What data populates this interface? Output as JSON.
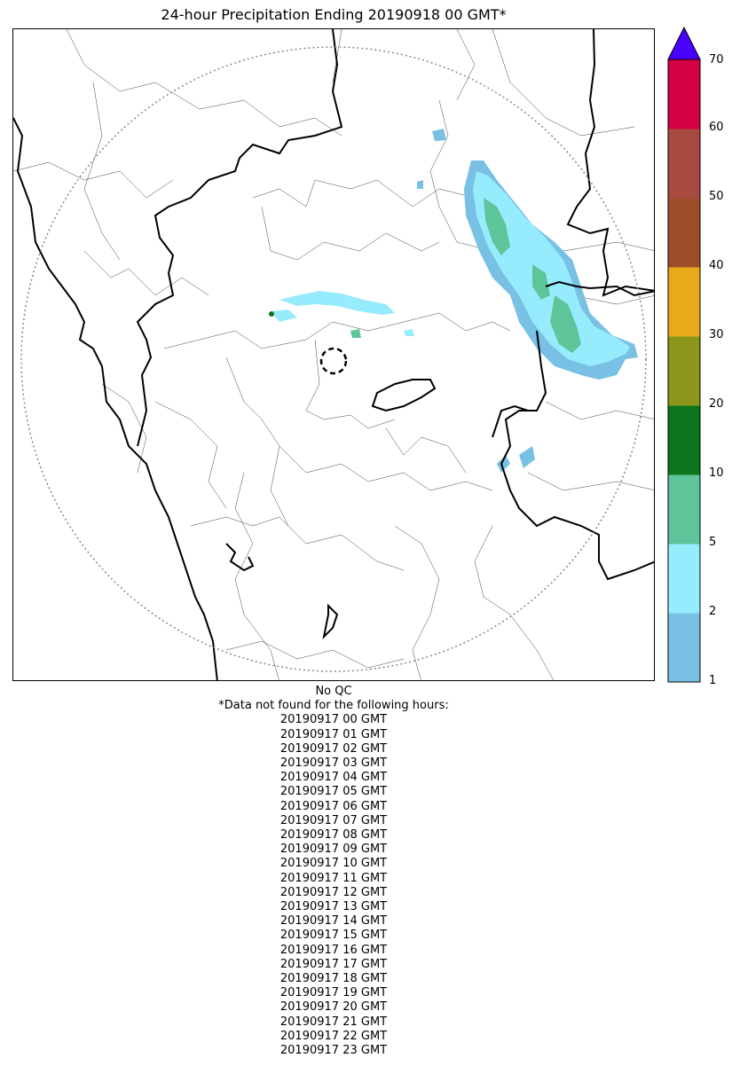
{
  "title": "24-hour Precipitation Ending 20190918 00 GMT*",
  "colorbar": {
    "ticks": [
      "1",
      "2",
      "5",
      "10",
      "20",
      "30",
      "40",
      "50",
      "60",
      "70"
    ],
    "colors": [
      "#78c0e4",
      "#96ecfc",
      "#5ec49a",
      "#0e741e",
      "#8c961a",
      "#e6aa1a",
      "#9c4e2a",
      "#a84a40",
      "#d40044"
    ],
    "extend_color": "#4a00ff"
  },
  "footer": {
    "qc": "No QC",
    "missing_heading": "*Data not found for the following hours:",
    "missing_hours": [
      "20190917 00 GMT",
      "20190917 01 GMT",
      "20190917 02 GMT",
      "20190917 03 GMT",
      "20190917 04 GMT",
      "20190917 05 GMT",
      "20190917 06 GMT",
      "20190917 07 GMT",
      "20190917 08 GMT",
      "20190917 09 GMT",
      "20190917 10 GMT",
      "20190917 11 GMT",
      "20190917 12 GMT",
      "20190917 13 GMT",
      "20190917 14 GMT",
      "20190917 15 GMT",
      "20190917 16 GMT",
      "20190917 17 GMT",
      "20190917 18 GMT",
      "20190917 19 GMT",
      "20190917 20 GMT",
      "20190917 21 GMT",
      "20190917 22 GMT",
      "20190917 23 GMT"
    ]
  }
}
